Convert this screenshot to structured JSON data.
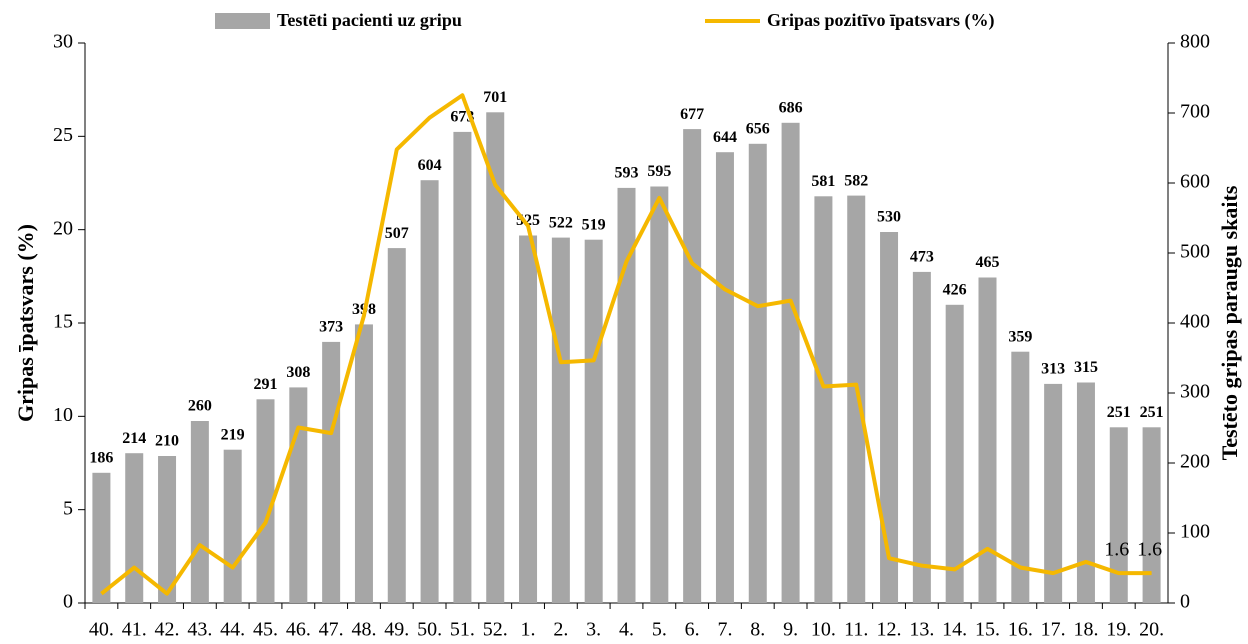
{
  "chart_data": {
    "type": "bar",
    "categories": [
      "40.",
      "41.",
      "42.",
      "43.",
      "44.",
      "45.",
      "46.",
      "47.",
      "48.",
      "49.",
      "50.",
      "51.",
      "52.",
      "1.",
      "2.",
      "3.",
      "4.",
      "5.",
      "6.",
      "7.",
      "8.",
      "9.",
      "10.",
      "11.",
      "12.",
      "13.",
      "14.",
      "15.",
      "16.",
      "17.",
      "18.",
      "19.",
      "20."
    ],
    "series": [
      {
        "name": "Testēti pacienti uz gripu",
        "type": "bar",
        "axis": "y2",
        "color": "#a6a6a6",
        "values": [
          186,
          214,
          210,
          260,
          219,
          291,
          308,
          373,
          398,
          507,
          604,
          673,
          701,
          525,
          522,
          519,
          593,
          595,
          677,
          644,
          656,
          686,
          581,
          582,
          530,
          473,
          426,
          465,
          359,
          313,
          315,
          251,
          251
        ]
      },
      {
        "name": "Gripas pozitīvo īpatsvars (%)",
        "type": "line",
        "color": "#f5b800",
        "values": [
          0.5,
          1.9,
          0.5,
          3.1,
          1.9,
          4.3,
          9.4,
          9.1,
          15.4,
          24.3,
          26,
          27.2,
          22.4,
          20.2,
          12.9,
          13,
          18.3,
          21.7,
          18.2,
          16.8,
          15.9,
          16.2,
          11.6,
          11.7,
          2.4,
          2.0,
          1.8,
          2.9,
          1.9,
          1.6,
          2.2,
          1.6,
          1.6
        ],
        "value_labels": [
          null,
          null,
          null,
          null,
          null,
          null,
          null,
          null,
          null,
          null,
          null,
          null,
          null,
          null,
          null,
          null,
          null,
          null,
          null,
          null,
          null,
          null,
          null,
          null,
          null,
          null,
          null,
          null,
          null,
          null,
          null,
          "1.6",
          "1.6"
        ]
      }
    ],
    "ylabel": "Gripas īpatsvars (%)",
    "y2label": "Testēto gripas paraugu skaits",
    "ylim": [
      0,
      30
    ],
    "yticks": [
      0,
      5,
      10,
      15,
      20,
      25,
      30
    ],
    "y2lim": [
      0,
      800
    ],
    "y2ticks": [
      0,
      100,
      200,
      300,
      400,
      500,
      600,
      700,
      800
    ],
    "grid": false,
    "legend": "top"
  }
}
